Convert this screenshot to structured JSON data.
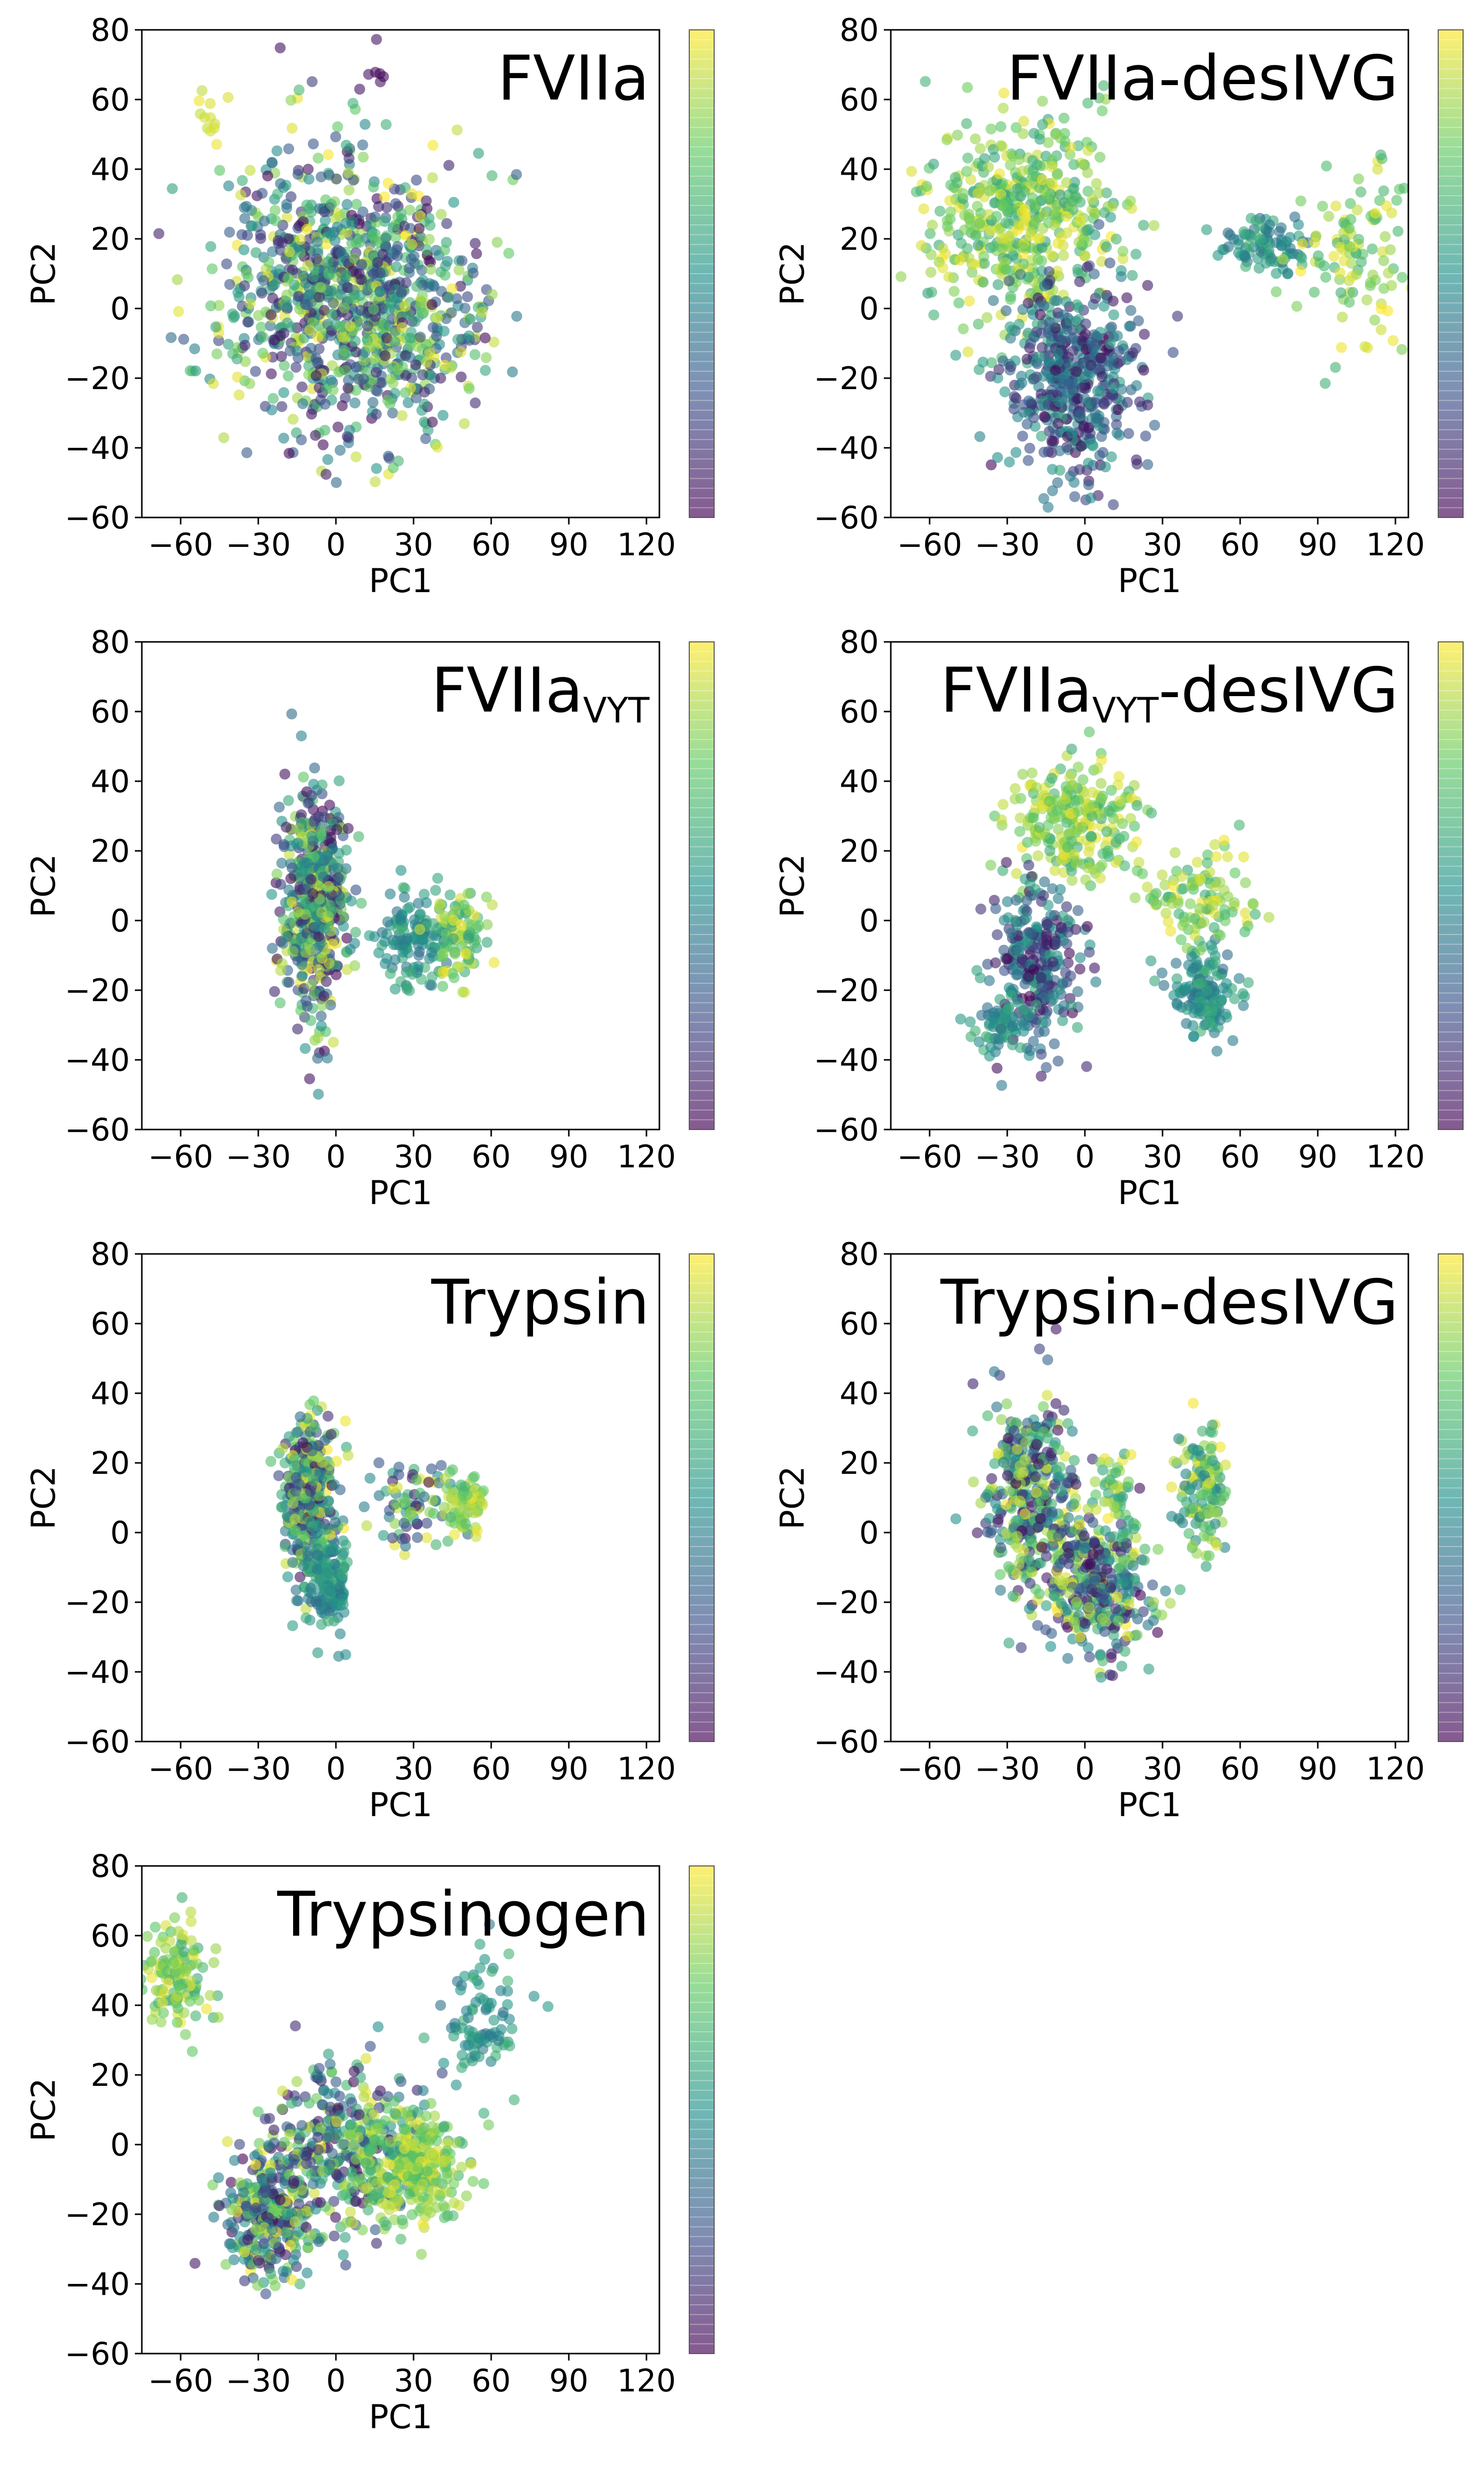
{
  "figure": {
    "description_colors": [
      "#440154",
      "#3b528b",
      "#21918c",
      "#5ec962",
      "#fde725"
    ]
  },
  "chart_data": [
    {
      "type": "scatter",
      "title": "FVIIa",
      "title_main": "FVIIa",
      "title_sub": "",
      "title_suffix": "",
      "xlabel": "PC1",
      "ylabel": "PC2",
      "xlim": [
        -75,
        125
      ],
      "ylim": [
        -60,
        80
      ],
      "xticks": [
        -60,
        -30,
        0,
        30,
        60,
        90,
        120
      ],
      "yticks": [
        -60,
        -40,
        -20,
        0,
        20,
        40,
        60,
        80
      ],
      "colormap": "viridis",
      "alpha": 0.6,
      "clusters": [
        {
          "cx": 0,
          "cy": 5,
          "sx": 22,
          "sy": 20,
          "n": 900,
          "colors": "mixed"
        },
        {
          "cx": 35,
          "cy": 0,
          "sx": 14,
          "sy": 16,
          "n": 180,
          "colors": "mixed"
        },
        {
          "cx": -50,
          "cy": 55,
          "sx": 5,
          "sy": 4,
          "n": 12,
          "colors": "yellow"
        },
        {
          "cx": 15,
          "cy": 68,
          "sx": 4,
          "sy": 4,
          "n": 6,
          "colors": "purple"
        }
      ]
    },
    {
      "type": "scatter",
      "title": "FVIIa-desIVG",
      "title_main": "FVIIa-desIVG",
      "title_sub": "",
      "title_suffix": "",
      "xlabel": "PC1",
      "ylabel": "PC2",
      "xlim": [
        -75,
        125
      ],
      "ylim": [
        -60,
        80
      ],
      "xticks": [
        -60,
        -30,
        0,
        30,
        60,
        90,
        120
      ],
      "yticks": [
        -60,
        -40,
        -20,
        0,
        20,
        40,
        60,
        80
      ],
      "colormap": "viridis",
      "alpha": 0.6,
      "clusters": [
        {
          "cx": -25,
          "cy": 25,
          "sx": 18,
          "sy": 14,
          "n": 500,
          "colors": "yellowish"
        },
        {
          "cx": -5,
          "cy": -20,
          "sx": 14,
          "sy": 14,
          "n": 500,
          "colors": "tealpurple"
        },
        {
          "cx": 70,
          "cy": 18,
          "sx": 8,
          "sy": 5,
          "n": 90,
          "colors": "teal"
        },
        {
          "cx": 105,
          "cy": 15,
          "sx": 10,
          "sy": 12,
          "n": 110,
          "colors": "greenyellow"
        }
      ]
    },
    {
      "type": "scatter",
      "title": "FVIIaVYT",
      "title_main": "FVIIa",
      "title_sub": "VYT",
      "title_suffix": "",
      "xlabel": "PC1",
      "ylabel": "PC2",
      "xlim": [
        -75,
        125
      ],
      "ylim": [
        -60,
        80
      ],
      "xticks": [
        -60,
        -30,
        0,
        30,
        60,
        90,
        120
      ],
      "yticks": [
        -60,
        -40,
        -20,
        0,
        20,
        40,
        60,
        80
      ],
      "colormap": "viridis",
      "alpha": 0.6,
      "clusters": [
        {
          "cx": -8,
          "cy": 5,
          "sx": 6,
          "sy": 16,
          "n": 550,
          "colors": "mixed"
        },
        {
          "cx": 30,
          "cy": -6,
          "sx": 7,
          "sy": 7,
          "n": 130,
          "colors": "teal"
        },
        {
          "cx": 48,
          "cy": -3,
          "sx": 5,
          "sy": 6,
          "n": 90,
          "colors": "yellowish"
        }
      ]
    },
    {
      "type": "scatter",
      "title": "FVIIaVYT-desIVG",
      "title_main": "FVIIa",
      "title_sub": "VYT",
      "title_suffix": "-desIVG",
      "xlabel": "PC1",
      "ylabel": "PC2",
      "xlim": [
        -75,
        125
      ],
      "ylim": [
        -60,
        80
      ],
      "xticks": [
        -60,
        -30,
        0,
        30,
        60,
        90,
        120
      ],
      "yticks": [
        -60,
        -40,
        -20,
        0,
        20,
        40,
        60,
        80
      ],
      "colormap": "viridis",
      "alpha": 0.6,
      "clusters": [
        {
          "cx": -5,
          "cy": 28,
          "sx": 12,
          "sy": 8,
          "n": 260,
          "colors": "greenyellow"
        },
        {
          "cx": -18,
          "cy": -12,
          "sx": 8,
          "sy": 12,
          "n": 280,
          "colors": "tealpurple"
        },
        {
          "cx": -32,
          "cy": -30,
          "sx": 6,
          "sy": 5,
          "n": 70,
          "colors": "teal"
        },
        {
          "cx": 45,
          "cy": -20,
          "sx": 7,
          "sy": 6,
          "n": 140,
          "colors": "teal"
        },
        {
          "cx": 45,
          "cy": 8,
          "sx": 12,
          "sy": 8,
          "n": 110,
          "colors": "greenyellow"
        }
      ]
    },
    {
      "type": "scatter",
      "title": "Trypsin",
      "title_main": "Trypsin",
      "title_sub": "",
      "title_suffix": "",
      "xlabel": "PC1",
      "ylabel": "PC2",
      "xlim": [
        -75,
        125
      ],
      "ylim": [
        -60,
        80
      ],
      "xticks": [
        -60,
        -30,
        0,
        30,
        60,
        90,
        120
      ],
      "yticks": [
        -60,
        -40,
        -20,
        0,
        20,
        40,
        60,
        80
      ],
      "colormap": "viridis",
      "alpha": 0.6,
      "clusters": [
        {
          "cx": -10,
          "cy": 10,
          "sx": 5,
          "sy": 12,
          "n": 350,
          "colors": "mixed"
        },
        {
          "cx": -3,
          "cy": -15,
          "sx": 4,
          "sy": 7,
          "n": 150,
          "colors": "teal"
        },
        {
          "cx": 30,
          "cy": 8,
          "sx": 9,
          "sy": 6,
          "n": 80,
          "colors": "mixed"
        },
        {
          "cx": 50,
          "cy": 8,
          "sx": 4,
          "sy": 4,
          "n": 60,
          "colors": "greenyellow"
        }
      ]
    },
    {
      "type": "scatter",
      "title": "Trypsin-desIVG",
      "title_main": "Trypsin-desIVG",
      "title_sub": "",
      "title_suffix": "",
      "xlabel": "PC1",
      "ylabel": "PC2",
      "xlim": [
        -75,
        125
      ],
      "ylim": [
        -60,
        80
      ],
      "xticks": [
        -60,
        -30,
        0,
        30,
        60,
        90,
        120
      ],
      "yticks": [
        -60,
        -40,
        -20,
        0,
        20,
        40,
        60,
        80
      ],
      "colormap": "viridis",
      "alpha": 0.6,
      "clusters": [
        {
          "cx": -20,
          "cy": 10,
          "sx": 9,
          "sy": 14,
          "n": 380,
          "colors": "mixed"
        },
        {
          "cx": 5,
          "cy": -15,
          "sx": 10,
          "sy": 10,
          "n": 350,
          "colors": "mixed"
        },
        {
          "cx": 45,
          "cy": 12,
          "sx": 5,
          "sy": 9,
          "n": 130,
          "colors": "tealyellow"
        },
        {
          "cx": 12,
          "cy": 12,
          "sx": 4,
          "sy": 6,
          "n": 40,
          "colors": "yellowish"
        }
      ]
    },
    {
      "type": "scatter",
      "title": "Trypsinogen",
      "title_main": "Trypsinogen",
      "title_sub": "",
      "title_suffix": "",
      "xlabel": "PC1",
      "ylabel": "PC2",
      "xlim": [
        -75,
        125
      ],
      "ylim": [
        -60,
        80
      ],
      "xticks": [
        -60,
        -30,
        0,
        30,
        60,
        90,
        120
      ],
      "yticks": [
        -60,
        -40,
        -20,
        0,
        20,
        40,
        60,
        80
      ],
      "colormap": "viridis",
      "alpha": 0.6,
      "clusters": [
        {
          "cx": -62,
          "cy": 50,
          "sx": 7,
          "sy": 8,
          "n": 130,
          "colors": "greenyellow"
        },
        {
          "cx": -25,
          "cy": -20,
          "sx": 9,
          "sy": 9,
          "n": 300,
          "colors": "mixed"
        },
        {
          "cx": 5,
          "cy": 0,
          "sx": 14,
          "sy": 12,
          "n": 350,
          "colors": "mixed"
        },
        {
          "cx": 30,
          "cy": -8,
          "sx": 9,
          "sy": 8,
          "n": 280,
          "colors": "greenyellow"
        },
        {
          "cx": 55,
          "cy": 35,
          "sx": 7,
          "sy": 10,
          "n": 90,
          "colors": "teal"
        }
      ]
    }
  ]
}
